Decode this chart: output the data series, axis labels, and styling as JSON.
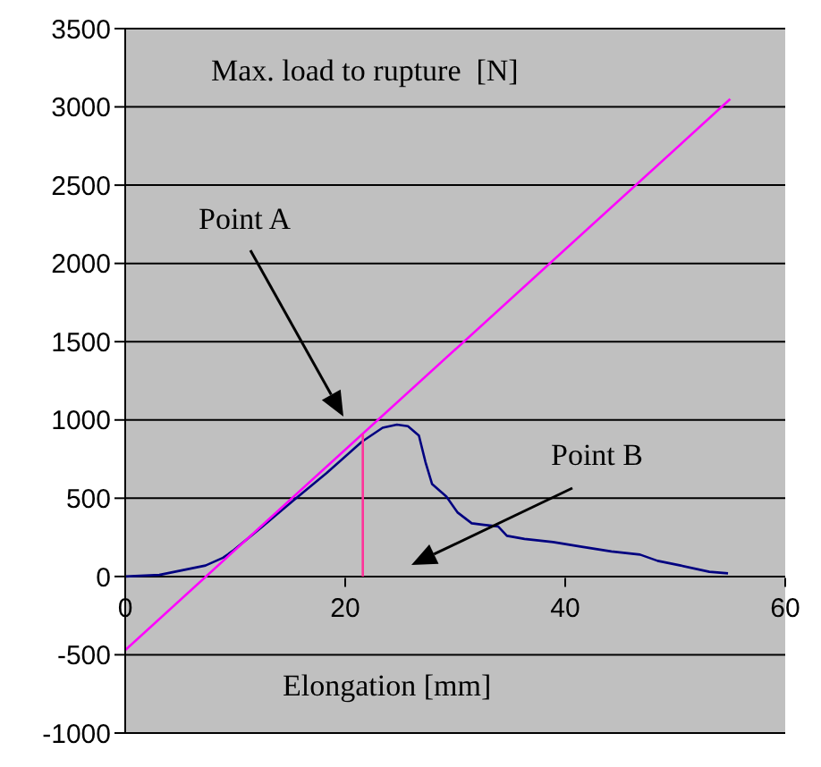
{
  "chart_data": {
    "type": "line",
    "title": "Max. load to rupture  [N]",
    "xlabel": "Elongation [mm]",
    "xlim": [
      0,
      60
    ],
    "xticks": [
      0,
      20,
      40,
      60
    ],
    "ylim": [
      -1000,
      3500
    ],
    "yticks": [
      -1000,
      -500,
      0,
      500,
      1000,
      1500,
      2000,
      2500,
      3000,
      3500
    ],
    "grid": "y",
    "marker": "none",
    "series": [
      {
        "color": "#000080",
        "x": [
          0,
          3.1,
          5.2,
          7.3,
          8.9,
          9.9,
          12.5,
          15.2,
          18.3,
          21.5,
          23.4,
          24.7,
          25.7,
          26.7,
          27.3,
          27.9,
          29.2,
          30.2,
          31.5,
          32.6,
          33.9,
          34.7,
          36.3,
          38.9,
          41.5,
          44.2,
          46.8,
          48.4,
          50.5,
          53.1,
          54.8
        ],
        "values": [
          0,
          10,
          40,
          70,
          120,
          170,
          320,
          480,
          660,
          860,
          950,
          970,
          960,
          900,
          730,
          590,
          510,
          410,
          340,
          330,
          320,
          260,
          240,
          220,
          190,
          160,
          140,
          100,
          70,
          30,
          20
        ]
      },
      {
        "color": "#ff00ff",
        "x": [
          0,
          55
        ],
        "values": [
          -470,
          3050
        ]
      },
      {
        "color": "#ff3399",
        "x": [
          21.6,
          21.6
        ],
        "values": [
          0,
          910
        ]
      }
    ],
    "annotations": [
      "Point A",
      "Point B"
    ]
  }
}
